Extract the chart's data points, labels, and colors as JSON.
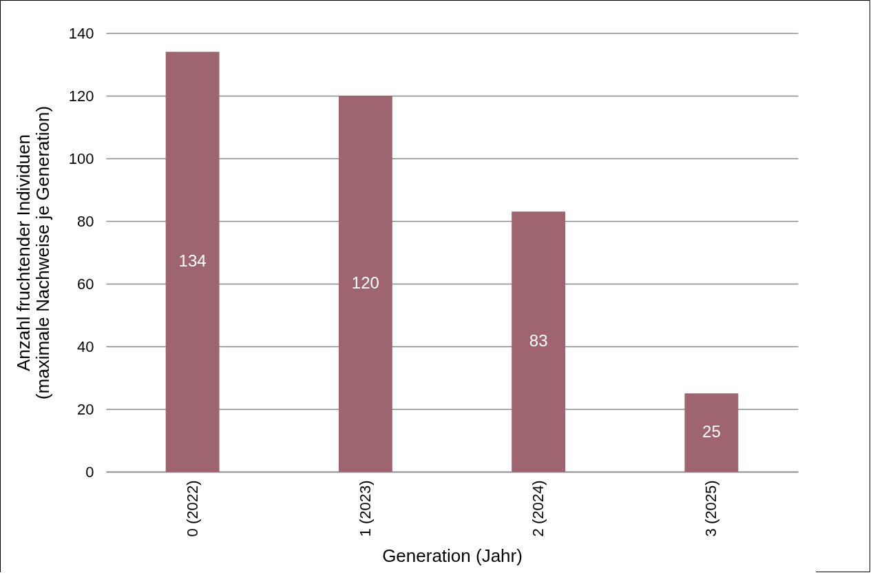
{
  "chart_data": {
    "type": "bar",
    "xlabel": "Generation (Jahr)",
    "ylabel": "Anzahl fruchtender Individuen\n(maximale Nachweise je Generation)",
    "categories": [
      "0 (2022)",
      "1 (2023)",
      "2 (2024)",
      "3 (2025)"
    ],
    "values": [
      134,
      120,
      83,
      25
    ],
    "color": "#9e6470",
    "ylim": [
      0,
      140
    ],
    "yticks": [
      0,
      20,
      40,
      60,
      80,
      100,
      120,
      140
    ],
    "grid": "y",
    "data_labels": true
  }
}
